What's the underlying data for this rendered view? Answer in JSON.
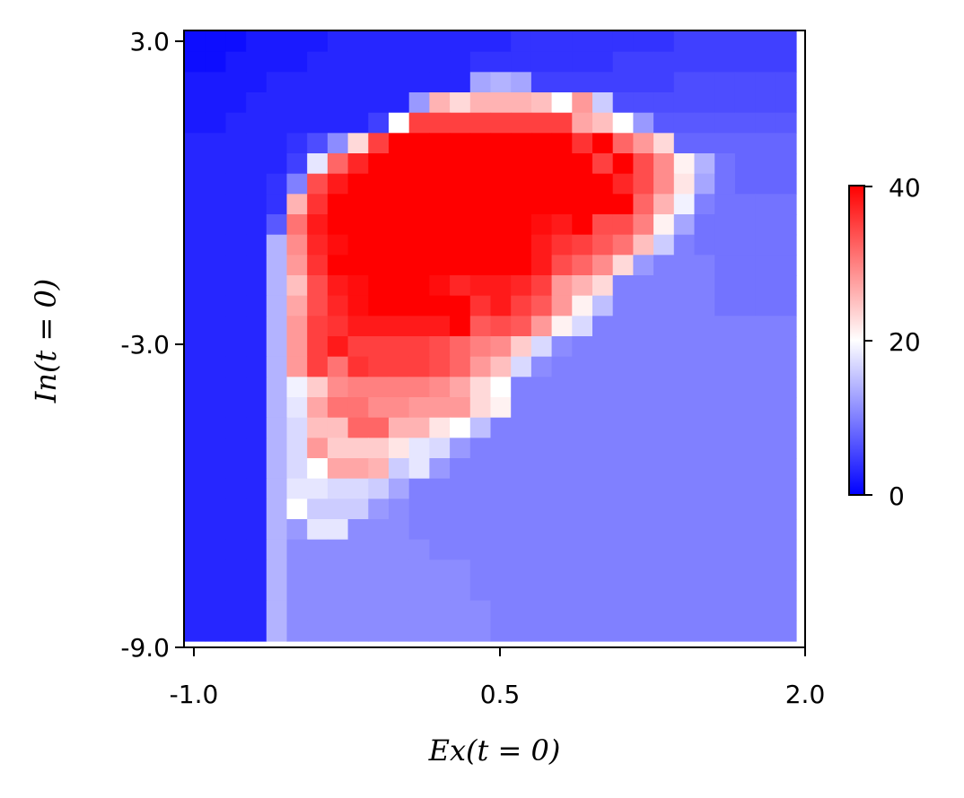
{
  "chart_data": {
    "type": "heatmap",
    "title": "",
    "xlabel": "Ex(t = 0)",
    "ylabel": "In(t = 0)",
    "xlim": [
      -1.0,
      2.0
    ],
    "ylim": [
      -9.0,
      3.0
    ],
    "x_ticks": [
      {
        "value": -1.0,
        "label": "-1.0"
      },
      {
        "value": 0.5,
        "label": "0.5"
      },
      {
        "value": 2.0,
        "label": "2.0"
      }
    ],
    "y_ticks": [
      {
        "value": 3.0,
        "label": "3.0"
      },
      {
        "value": -3.0,
        "label": "-3.0"
      },
      {
        "value": -9.0,
        "label": "-9.0"
      }
    ],
    "colormap": "bwr",
    "colormap_stops": [
      "#0000ff",
      "#ffffff",
      "#ff0000"
    ],
    "colorbar": {
      "min": 0,
      "max": 40,
      "ticks": [
        {
          "value": 0,
          "label": "0"
        },
        {
          "value": 20,
          "label": "20"
        },
        {
          "value": 40,
          "label": "40"
        }
      ]
    },
    "grid": false,
    "grid_size": [
      30,
      30
    ],
    "values": [
      [
        1,
        1,
        1,
        2,
        2,
        2,
        2,
        3,
        3,
        3,
        3,
        3,
        3,
        3,
        3,
        3,
        4,
        4,
        4,
        4,
        4,
        4,
        4,
        4,
        5,
        5,
        5,
        5,
        5,
        5
      ],
      [
        1,
        1,
        2,
        2,
        2,
        2,
        3,
        3,
        3,
        3,
        3,
        3,
        3,
        3,
        4,
        4,
        4,
        4,
        4,
        4,
        4,
        5,
        5,
        5,
        5,
        5,
        5,
        5,
        5,
        5
      ],
      [
        2,
        2,
        2,
        2,
        3,
        3,
        3,
        3,
        3,
        3,
        3,
        3,
        3,
        3,
        13,
        14,
        13,
        5,
        5,
        5,
        5,
        5,
        5,
        5,
        6,
        6,
        6,
        6,
        6,
        6
      ],
      [
        2,
        2,
        2,
        3,
        3,
        3,
        3,
        3,
        3,
        3,
        3,
        12,
        26,
        23,
        26,
        26,
        26,
        25,
        20,
        28,
        16,
        6,
        6,
        6,
        6,
        6,
        6,
        6,
        6,
        6
      ],
      [
        2,
        2,
        3,
        3,
        3,
        3,
        3,
        3,
        3,
        5,
        20,
        35,
        35,
        35,
        35,
        35,
        35,
        35,
        35,
        27,
        25,
        20,
        12,
        7,
        7,
        7,
        7,
        7,
        7,
        7
      ],
      [
        3,
        3,
        3,
        3,
        3,
        4,
        6,
        11,
        23,
        35,
        40,
        40,
        40,
        40,
        40,
        40,
        40,
        40,
        40,
        36,
        40,
        32,
        28,
        23,
        8,
        8,
        8,
        8,
        8,
        8
      ],
      [
        3,
        3,
        3,
        3,
        3,
        5,
        18,
        32,
        37,
        40,
        40,
        40,
        40,
        40,
        40,
        40,
        40,
        40,
        40,
        40,
        35,
        40,
        34,
        29,
        21,
        14,
        9,
        8,
        8,
        8
      ],
      [
        3,
        3,
        3,
        3,
        4,
        10,
        34,
        38,
        40,
        40,
        40,
        40,
        40,
        40,
        40,
        40,
        40,
        40,
        40,
        40,
        40,
        37,
        34,
        29,
        22,
        13,
        9,
        8,
        8,
        8
      ],
      [
        3,
        3,
        3,
        3,
        4,
        26,
        36,
        40,
        40,
        40,
        40,
        40,
        40,
        40,
        40,
        40,
        40,
        40,
        40,
        40,
        40,
        40,
        32,
        26,
        19,
        10,
        9,
        9,
        9,
        9
      ],
      [
        3,
        3,
        3,
        3,
        7,
        31,
        38,
        40,
        40,
        40,
        40,
        40,
        40,
        40,
        40,
        40,
        40,
        39,
        38,
        40,
        34,
        34,
        30,
        21,
        13,
        9,
        9,
        9,
        9,
        9
      ],
      [
        3,
        3,
        3,
        3,
        14,
        29,
        37,
        39,
        40,
        40,
        40,
        40,
        40,
        40,
        40,
        40,
        40,
        38,
        36,
        35,
        33,
        31,
        25,
        16,
        10,
        9,
        9,
        9,
        9,
        9
      ],
      [
        3,
        3,
        3,
        3,
        14,
        28,
        36,
        40,
        40,
        40,
        40,
        40,
        40,
        40,
        40,
        40,
        40,
        38,
        34,
        32,
        29,
        23,
        12,
        10,
        10,
        10,
        9,
        9,
        9,
        9
      ],
      [
        3,
        3,
        3,
        3,
        14,
        25,
        34,
        38,
        39,
        40,
        40,
        40,
        39,
        37,
        38,
        38,
        37,
        35,
        28,
        26,
        23,
        10,
        10,
        10,
        10,
        10,
        9,
        9,
        9,
        9
      ],
      [
        3,
        3,
        3,
        3,
        14,
        27,
        34,
        37,
        39,
        40,
        40,
        40,
        40,
        40,
        36,
        38,
        35,
        33,
        28,
        21,
        15,
        10,
        10,
        10,
        10,
        10,
        9,
        9,
        9,
        9
      ],
      [
        3,
        3,
        3,
        3,
        14,
        28,
        35,
        36,
        38,
        38,
        38,
        38,
        38,
        40,
        33,
        34,
        33,
        28,
        21,
        17,
        10,
        10,
        10,
        10,
        10,
        10,
        10,
        10,
        10,
        10
      ],
      [
        3,
        3,
        3,
        3,
        14,
        28,
        35,
        38,
        35,
        35,
        35,
        35,
        34,
        32,
        30,
        29,
        24,
        17,
        11,
        10,
        10,
        10,
        10,
        10,
        10,
        10,
        10,
        10,
        10,
        10
      ],
      [
        3,
        3,
        3,
        3,
        14,
        28,
        35,
        31,
        36,
        35,
        35,
        35,
        34,
        32,
        28,
        25,
        17,
        11,
        10,
        10,
        10,
        10,
        10,
        10,
        10,
        10,
        10,
        10,
        10,
        10
      ],
      [
        3,
        3,
        3,
        3,
        14,
        19,
        24,
        29,
        30,
        30,
        30,
        30,
        29,
        27,
        23,
        20,
        10,
        10,
        10,
        10,
        10,
        10,
        10,
        10,
        10,
        10,
        10,
        10,
        10,
        10
      ],
      [
        3,
        3,
        3,
        3,
        14,
        18,
        27,
        31,
        31,
        29,
        29,
        28,
        28,
        28,
        23,
        21,
        10,
        10,
        10,
        10,
        10,
        10,
        10,
        10,
        10,
        10,
        10,
        10,
        10,
        10
      ],
      [
        3,
        3,
        3,
        3,
        14,
        17,
        25,
        25,
        32,
        32,
        26,
        26,
        22,
        20,
        15,
        10,
        10,
        10,
        10,
        10,
        10,
        10,
        10,
        10,
        10,
        10,
        10,
        10,
        10,
        10
      ],
      [
        3,
        3,
        3,
        3,
        14,
        17,
        28,
        24,
        24,
        24,
        22,
        18,
        17,
        12,
        10,
        10,
        10,
        10,
        10,
        10,
        10,
        10,
        10,
        10,
        10,
        10,
        10,
        10,
        10,
        10
      ],
      [
        3,
        3,
        3,
        3,
        14,
        17,
        20,
        27,
        27,
        26,
        16,
        18,
        12,
        10,
        10,
        10,
        10,
        10,
        10,
        10,
        10,
        10,
        10,
        10,
        10,
        10,
        10,
        10,
        10,
        10
      ],
      [
        3,
        3,
        3,
        3,
        14,
        18,
        18,
        17,
        17,
        16,
        13,
        10,
        10,
        10,
        10,
        10,
        10,
        10,
        10,
        10,
        10,
        10,
        10,
        10,
        10,
        10,
        10,
        10,
        10,
        10
      ],
      [
        3,
        3,
        3,
        3,
        14,
        20,
        16,
        16,
        16,
        12,
        11,
        10,
        10,
        10,
        10,
        10,
        10,
        10,
        10,
        10,
        10,
        10,
        10,
        10,
        10,
        10,
        10,
        10,
        10,
        10
      ],
      [
        3,
        3,
        3,
        3,
        14,
        12,
        18,
        18,
        11,
        11,
        11,
        10,
        10,
        10,
        10,
        10,
        10,
        10,
        10,
        10,
        10,
        10,
        10,
        10,
        10,
        10,
        10,
        10,
        10,
        10
      ],
      [
        3,
        3,
        3,
        3,
        14,
        11,
        11,
        11,
        11,
        11,
        11,
        11,
        10,
        10,
        10,
        10,
        10,
        10,
        10,
        10,
        10,
        10,
        10,
        10,
        10,
        10,
        10,
        10,
        10,
        10
      ],
      [
        3,
        3,
        3,
        3,
        14,
        11,
        11,
        11,
        11,
        11,
        11,
        11,
        11,
        11,
        10,
        10,
        10,
        10,
        10,
        10,
        10,
        10,
        10,
        10,
        10,
        10,
        10,
        10,
        10,
        10
      ],
      [
        3,
        3,
        3,
        3,
        14,
        11,
        11,
        11,
        11,
        11,
        11,
        11,
        11,
        11,
        10,
        10,
        10,
        10,
        10,
        10,
        10,
        10,
        10,
        10,
        10,
        10,
        10,
        10,
        10,
        10
      ],
      [
        3,
        3,
        3,
        3,
        14,
        11,
        11,
        11,
        11,
        11,
        11,
        11,
        11,
        11,
        11,
        10,
        10,
        10,
        10,
        10,
        10,
        10,
        10,
        10,
        10,
        10,
        10,
        10,
        10,
        10
      ],
      [
        3,
        3,
        3,
        3,
        14,
        11,
        11,
        11,
        11,
        11,
        11,
        11,
        11,
        11,
        11,
        10,
        10,
        10,
        10,
        10,
        10,
        10,
        10,
        10,
        10,
        10,
        10,
        10,
        10,
        10
      ]
    ]
  }
}
